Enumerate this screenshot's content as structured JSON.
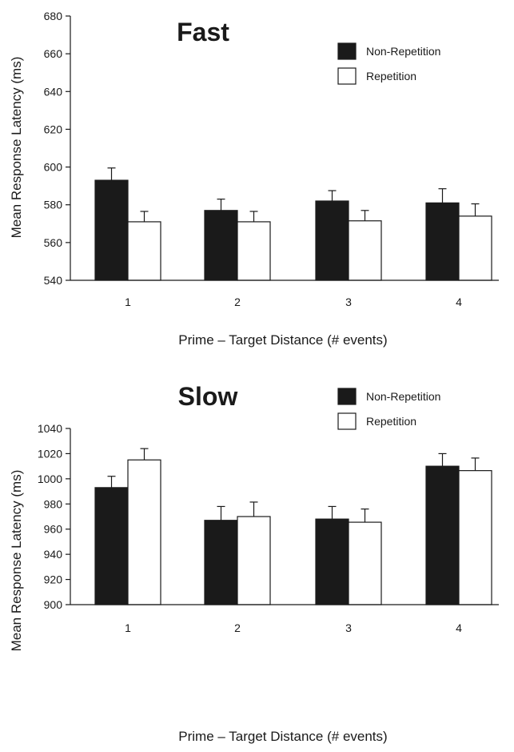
{
  "chart_data": [
    {
      "type": "bar",
      "title": "Fast",
      "xlabel": "Prime – Target Distance (# events)",
      "ylabel": "Mean Response Latency  (ms)",
      "categories": [
        "1",
        "2",
        "3",
        "4"
      ],
      "ylim": [
        540,
        680
      ],
      "yticks": [
        540,
        560,
        580,
        600,
        620,
        640,
        660,
        680
      ],
      "legend_position": "top-right",
      "series": [
        {
          "name": "Non-Repetition",
          "color": "#1a1a1a",
          "values": [
            593,
            577,
            582,
            581
          ],
          "errors": [
            6.5,
            6,
            5.5,
            7.5
          ]
        },
        {
          "name": "Repetition",
          "color": "#ffffff",
          "values": [
            571,
            571,
            571.5,
            574
          ],
          "errors": [
            5.5,
            5.5,
            5.5,
            6.5
          ]
        }
      ]
    },
    {
      "type": "bar",
      "title": "Slow",
      "xlabel": "Prime – Target Distance (# events)",
      "ylabel": "Mean Response Latency  (ms)",
      "categories": [
        "1",
        "2",
        "3",
        "4"
      ],
      "ylim": [
        900,
        1040
      ],
      "yticks": [
        900,
        920,
        940,
        960,
        980,
        1000,
        1020,
        1040
      ],
      "legend_position": "top-right",
      "series": [
        {
          "name": "Non-Repetition",
          "color": "#1a1a1a",
          "values": [
            993,
            967,
            968,
            1010
          ],
          "errors": [
            9,
            11,
            10,
            10
          ]
        },
        {
          "name": "Repetition",
          "color": "#ffffff",
          "values": [
            1015,
            970,
            965.5,
            1006.5
          ],
          "errors": [
            9,
            11.5,
            10.5,
            10
          ]
        }
      ]
    }
  ]
}
